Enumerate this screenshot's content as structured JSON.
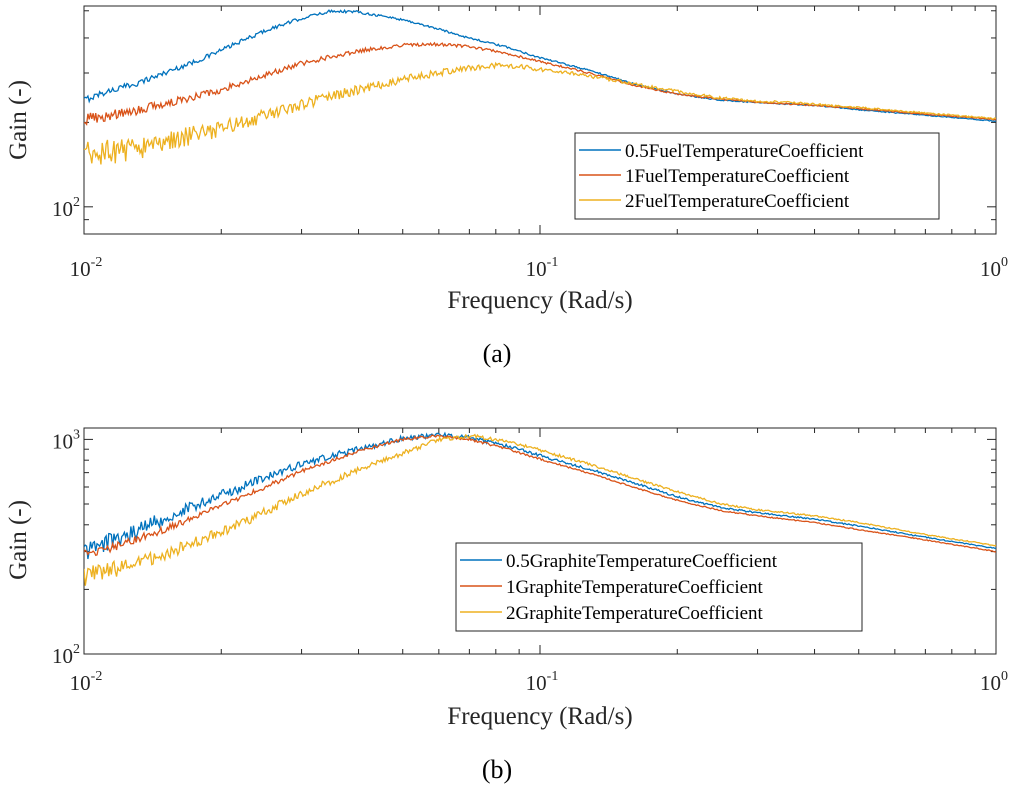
{
  "chart_data": [
    {
      "type": "line",
      "panel_label": "(a)",
      "xlabel": "Frequency (Rad/s)",
      "ylabel": "Gain (-)",
      "x_scale": "log",
      "y_scale": "log",
      "xlim": [
        0.01,
        1
      ],
      "ylim": [
        80,
        520
      ],
      "x_ticks": [
        {
          "value": 0.01,
          "base": "10",
          "exp": "-2"
        },
        {
          "value": 0.1,
          "base": "10",
          "exp": "-1"
        },
        {
          "value": 1,
          "base": "10",
          "exp": "0"
        }
      ],
      "y_ticks": [
        {
          "value": 100,
          "base": "10",
          "exp": "2"
        }
      ],
      "grid": false,
      "legend_position": "bottom-right",
      "series": [
        {
          "name": "0.5FuelTemperatureCoefficient",
          "color": "#0072BD",
          "noise": 0.025,
          "points": [
            [
              0.01,
              240
            ],
            [
              0.011,
              255
            ],
            [
              0.013,
              275
            ],
            [
              0.015,
              300
            ],
            [
              0.018,
              335
            ],
            [
              0.021,
              375
            ],
            [
              0.025,
              425
            ],
            [
              0.03,
              470
            ],
            [
              0.035,
              500
            ],
            [
              0.04,
              495
            ],
            [
              0.05,
              465
            ],
            [
              0.06,
              430
            ],
            [
              0.07,
              400
            ],
            [
              0.085,
              370
            ],
            [
              0.1,
              340
            ],
            [
              0.13,
              305
            ],
            [
              0.16,
              275
            ],
            [
              0.2,
              252
            ],
            [
              0.25,
              240
            ],
            [
              0.3,
              235
            ],
            [
              0.4,
              230
            ],
            [
              0.5,
              222
            ],
            [
              0.7,
              212
            ],
            [
              1.0,
              202
            ]
          ]
        },
        {
          "name": "1FuelTemperatureCoefficient",
          "color": "#D95319",
          "noise": 0.045,
          "points": [
            [
              0.01,
              205
            ],
            [
              0.012,
              215
            ],
            [
              0.015,
              232
            ],
            [
              0.02,
              262
            ],
            [
              0.025,
              295
            ],
            [
              0.03,
              325
            ],
            [
              0.04,
              360
            ],
            [
              0.05,
              378
            ],
            [
              0.06,
              380
            ],
            [
              0.07,
              372
            ],
            [
              0.085,
              352
            ],
            [
              0.1,
              330
            ],
            [
              0.13,
              298
            ],
            [
              0.16,
              272
            ],
            [
              0.2,
              252
            ],
            [
              0.25,
              242
            ],
            [
              0.3,
              236
            ],
            [
              0.4,
              230
            ],
            [
              0.5,
              224
            ],
            [
              0.7,
              214
            ],
            [
              1.0,
              205
            ]
          ]
        },
        {
          "name": "2FuelTemperatureCoefficient",
          "color": "#EDB120",
          "noise": 0.12,
          "points": [
            [
              0.01,
              150
            ],
            [
              0.012,
              158
            ],
            [
              0.015,
              170
            ],
            [
              0.02,
              190
            ],
            [
              0.025,
              212
            ],
            [
              0.03,
              232
            ],
            [
              0.04,
              262
            ],
            [
              0.05,
              285
            ],
            [
              0.06,
              300
            ],
            [
              0.07,
              312
            ],
            [
              0.08,
              318
            ],
            [
              0.09,
              316
            ],
            [
              0.1,
              310
            ],
            [
              0.12,
              298
            ],
            [
              0.15,
              280
            ],
            [
              0.2,
              258
            ],
            [
              0.25,
              244
            ],
            [
              0.3,
              238
            ],
            [
              0.35,
              236
            ],
            [
              0.4,
              232
            ],
            [
              0.5,
              226
            ],
            [
              0.7,
              216
            ],
            [
              1.0,
              206
            ]
          ]
        }
      ]
    },
    {
      "type": "line",
      "panel_label": "(b)",
      "xlabel": "Frequency (Rad/s)",
      "ylabel": "Gain (-)",
      "x_scale": "log",
      "y_scale": "log",
      "xlim": [
        0.01,
        1
      ],
      "ylim": [
        100,
        1130
      ],
      "x_ticks": [
        {
          "value": 0.01,
          "base": "10",
          "exp": "-2"
        },
        {
          "value": 0.1,
          "base": "10",
          "exp": "-1"
        },
        {
          "value": 1,
          "base": "10",
          "exp": "0"
        }
      ],
      "y_ticks": [
        {
          "value": 100,
          "base": "10",
          "exp": "2"
        },
        {
          "value": 1000,
          "base": "10",
          "exp": "3"
        }
      ],
      "grid": false,
      "legend_position": "bottom-right",
      "series": [
        {
          "name": "0.5GraphiteTemperatureCoefficient",
          "color": "#0072BD",
          "noise": 0.1,
          "points": [
            [
              0.01,
              300
            ],
            [
              0.012,
              350
            ],
            [
              0.015,
              430
            ],
            [
              0.02,
              550
            ],
            [
              0.025,
              660
            ],
            [
              0.03,
              770
            ],
            [
              0.04,
              900
            ],
            [
              0.05,
              1010
            ],
            [
              0.06,
              1050
            ],
            [
              0.07,
              1020
            ],
            [
              0.085,
              930
            ],
            [
              0.1,
              840
            ],
            [
              0.13,
              720
            ],
            [
              0.16,
              630
            ],
            [
              0.2,
              540
            ],
            [
              0.25,
              480
            ],
            [
              0.3,
              455
            ],
            [
              0.4,
              425
            ],
            [
              0.5,
              395
            ],
            [
              0.7,
              350
            ],
            [
              1.0,
              310
            ]
          ]
        },
        {
          "name": "1GraphiteTemperatureCoefficient",
          "color": "#D95319",
          "noise": 0.05,
          "points": [
            [
              0.01,
              290
            ],
            [
              0.012,
              320
            ],
            [
              0.015,
              380
            ],
            [
              0.02,
              490
            ],
            [
              0.025,
              600
            ],
            [
              0.03,
              710
            ],
            [
              0.04,
              880
            ],
            [
              0.05,
              1000
            ],
            [
              0.06,
              1040
            ],
            [
              0.07,
              1000
            ],
            [
              0.085,
              900
            ],
            [
              0.1,
              810
            ],
            [
              0.13,
              690
            ],
            [
              0.16,
              600
            ],
            [
              0.2,
              520
            ],
            [
              0.25,
              465
            ],
            [
              0.3,
              440
            ],
            [
              0.4,
              410
            ],
            [
              0.5,
              380
            ],
            [
              0.7,
              340
            ],
            [
              1.0,
              300
            ]
          ]
        },
        {
          "name": "2GraphiteTemperatureCoefficient",
          "color": "#EDB120",
          "noise": 0.1,
          "points": [
            [
              0.01,
              230
            ],
            [
              0.012,
              250
            ],
            [
              0.015,
              290
            ],
            [
              0.02,
              370
            ],
            [
              0.025,
              460
            ],
            [
              0.03,
              560
            ],
            [
              0.04,
              720
            ],
            [
              0.05,
              860
            ],
            [
              0.06,
              1000
            ],
            [
              0.07,
              1040
            ],
            [
              0.085,
              980
            ],
            [
              0.1,
              890
            ],
            [
              0.13,
              760
            ],
            [
              0.16,
              660
            ],
            [
              0.2,
              570
            ],
            [
              0.25,
              500
            ],
            [
              0.3,
              470
            ],
            [
              0.4,
              440
            ],
            [
              0.5,
              410
            ],
            [
              0.7,
              360
            ],
            [
              1.0,
              320
            ]
          ]
        }
      ]
    }
  ]
}
